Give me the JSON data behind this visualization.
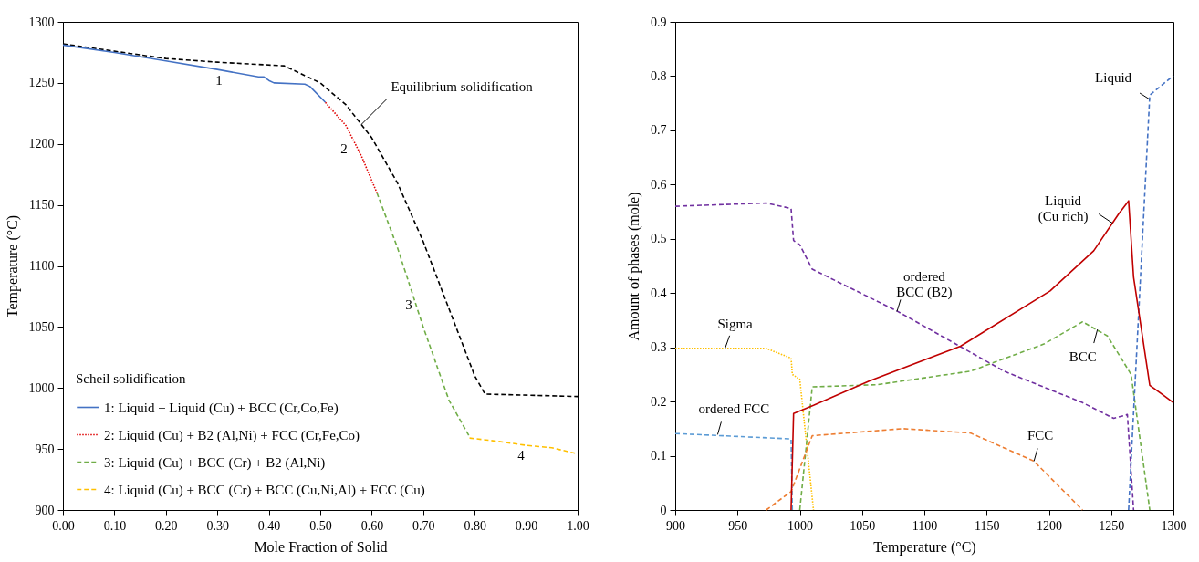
{
  "chart_data": [
    {
      "type": "line",
      "xlabel": "Mole Fraction of Solid",
      "ylabel": "Temperature (°C)",
      "legend": "bottom left",
      "legend_title": "Scheil solidification",
      "grid": false,
      "xlim": [
        0,
        1
      ],
      "xticks": [
        {
          "value": 0,
          "label": "0.00"
        },
        {
          "value": 0.1,
          "label": "0.10"
        },
        {
          "value": 0.2,
          "label": "0.20"
        },
        {
          "value": 0.3,
          "label": "0.30"
        },
        {
          "value": 0.4,
          "label": "0.40"
        },
        {
          "value": 0.5,
          "label": "0.50"
        },
        {
          "value": 0.6,
          "label": "0.60"
        },
        {
          "value": 0.7,
          "label": "0.70"
        },
        {
          "value": 0.8,
          "label": "0.80"
        },
        {
          "value": 0.9,
          "label": "0.90"
        },
        {
          "value": 1,
          "label": "1.00"
        }
      ],
      "ylim": [
        900,
        1300
      ],
      "yticks": [
        900,
        950,
        1000,
        1050,
        1100,
        1150,
        1200,
        1250,
        1300
      ],
      "series": [
        {
          "color": "#000000",
          "line_style": "dashed",
          "x": [
            0,
            0.1,
            0.2,
            0.3,
            0.43,
            0.5,
            0.55,
            0.6,
            0.65,
            0.7,
            0.75,
            0.8,
            0.82,
            1
          ],
          "values": [
            1282,
            1276,
            1270,
            1267,
            1264,
            1250,
            1232,
            1205,
            1168,
            1120,
            1065,
            1010,
            995,
            993
          ]
        },
        {
          "name": "1: Liquid + Liquid (Cu) + BCC (Cr,Co,Fe)",
          "color": "#4472c4",
          "line_style": "solid",
          "x": [
            0,
            0.1,
            0.2,
            0.3,
            0.38,
            0.39,
            0.4,
            0.41,
            0.47,
            0.48,
            0.51
          ],
          "values": [
            1281,
            1275,
            1268,
            1261,
            1255,
            1255,
            1252,
            1250,
            1249,
            1247,
            1234
          ]
        },
        {
          "name": "2: Liquid (Cu) + B2 (Al,Ni) + FCC (Cr,Fe,Co)",
          "color": "#e00000",
          "line_style": "dotted",
          "x": [
            0.51,
            0.55,
            0.58,
            0.61
          ],
          "values": [
            1234,
            1215,
            1190,
            1160
          ]
        },
        {
          "name": "3: Liquid (Cu) + BCC (Cr) + B2 (Al,Ni)",
          "color": "#70ad47",
          "line_style": "dashed",
          "x": [
            0.61,
            0.65,
            0.7,
            0.75,
            0.79
          ],
          "values": [
            1160,
            1115,
            1050,
            990,
            960
          ]
        },
        {
          "name": "4: Liquid (Cu) + BCC (Cr) + BCC (Cu,Ni,Al) + FCC (Cu)",
          "color": "#ffc000",
          "line_style": "dashed",
          "x": [
            0.79,
            0.85,
            0.9,
            0.95,
            1
          ],
          "values": [
            959,
            956,
            953,
            951,
            946
          ]
        }
      ],
      "annotations": [
        "1",
        "2",
        "3",
        "4",
        {
          "text": "Equilibrium solidification",
          "x": 0.58,
          "y": 1216
        }
      ]
    },
    {
      "type": "line",
      "xlabel": "Temperature (°C)",
      "ylabel": "Amount of phases (mole)",
      "grid": false,
      "xlim": [
        900,
        1300
      ],
      "xticks": [
        900,
        950,
        1000,
        1050,
        1100,
        1150,
        1200,
        1250,
        1300
      ],
      "ylim": [
        0,
        0.9
      ],
      "yticks": [
        0,
        0.1,
        0.2,
        0.3,
        0.4,
        0.5,
        0.6,
        0.7,
        0.8,
        0.9
      ],
      "series": [
        {
          "color": "#7030a0",
          "line_style": "dashed",
          "x": [
            900,
            973,
            993,
            995,
            1000,
            1010,
            1078,
            1164,
            1227,
            1252,
            1263,
            1268
          ],
          "values": [
            0.56,
            0.566,
            0.556,
            0.497,
            0.489,
            0.444,
            0.367,
            0.256,
            0.198,
            0.169,
            0.176,
            0
          ]
        },
        {
          "color": "#ffc000",
          "line_style": "dotted",
          "x": [
            900,
            973,
            993,
            994,
            1000,
            1011
          ],
          "values": [
            0.298,
            0.298,
            0.28,
            0.25,
            0.241,
            0
          ]
        },
        {
          "color": "#5b9bd5",
          "line_style": "dashed",
          "x": [
            900,
            993,
            994
          ],
          "values": [
            0.141,
            0.131,
            0
          ]
        },
        {
          "color": "#70ad47",
          "line_style": "dashed",
          "x": [
            1000,
            1010,
            1062,
            1137,
            1196,
            1227,
            1247,
            1266,
            1281
          ],
          "values": [
            0,
            0.227,
            0.231,
            0.256,
            0.306,
            0.347,
            0.321,
            0.25,
            0
          ]
        },
        {
          "color": "#ed7d31",
          "line_style": "dashed",
          "x": [
            973,
            993,
            1010,
            1083,
            1137,
            1188,
            1227
          ],
          "values": [
            0,
            0.034,
            0.137,
            0.15,
            0.142,
            0.09,
            0
          ]
        },
        {
          "color": "#4472c4",
          "line_style": "dashed",
          "x": [
            1264,
            1281,
            1300
          ],
          "values": [
            0,
            0.765,
            0.801
          ]
        },
        {
          "color": "#c00000",
          "line_style": "solid",
          "x": [
            993,
            995,
            1011,
            1056,
            1129,
            1201,
            1236,
            1256,
            1264,
            1268,
            1281,
            1300
          ],
          "values": [
            0,
            0.178,
            0.193,
            0.238,
            0.302,
            0.404,
            0.478,
            0.546,
            0.57,
            0.429,
            0.23,
            0.198
          ]
        }
      ],
      "annotations": [
        {
          "text": "Liquid",
          "x": 1281,
          "y": 0.757
        },
        {
          "text": "Liquid\n(Cu rich)",
          "x": 1251,
          "y": 0.529
        },
        {
          "text": "ordered\nBCC (B2)",
          "x": 1078,
          "y": 0.366
        },
        {
          "text": "Sigma",
          "x": 940,
          "y": 0.298
        },
        {
          "text": "ordered FCC",
          "x": 934,
          "y": 0.139
        },
        {
          "text": "BCC",
          "x": 1239,
          "y": 0.333
        },
        {
          "text": "FCC",
          "x": 1188,
          "y": 0.09
        }
      ]
    }
  ]
}
